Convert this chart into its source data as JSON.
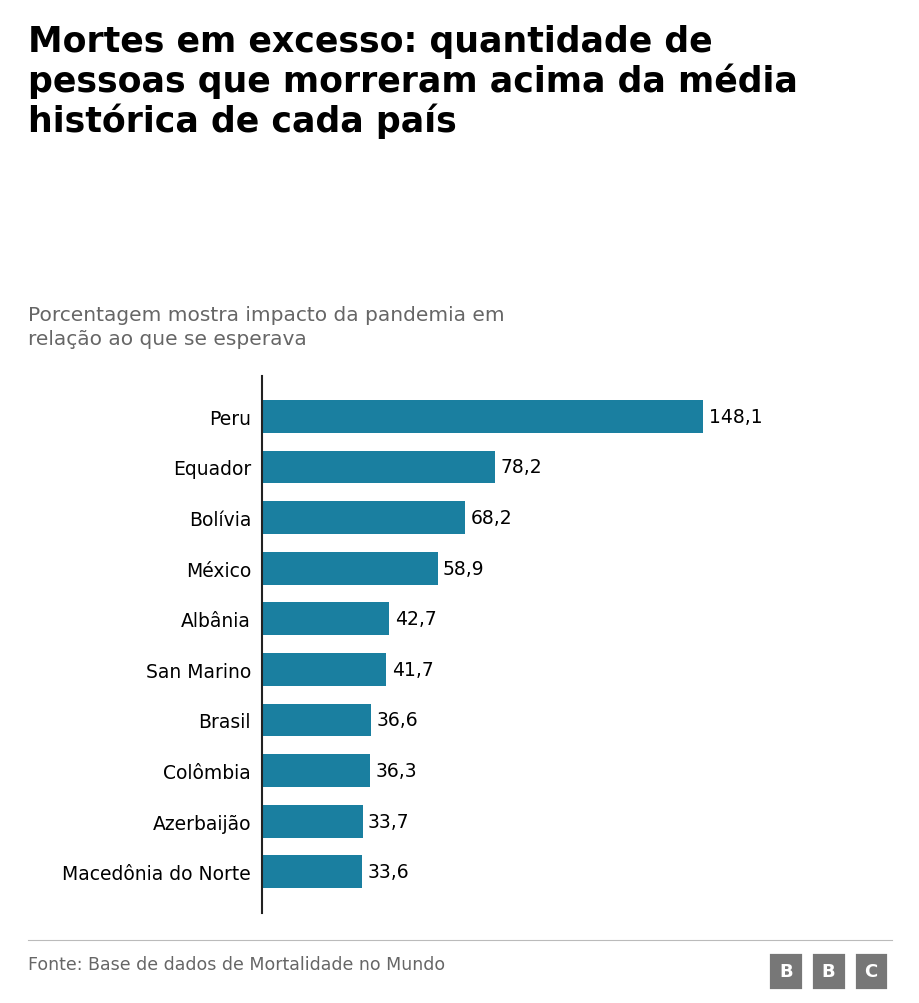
{
  "title": "Mortes em excesso: quantidade de\npessoas que morreram acima da média\nhistórica de cada país",
  "subtitle": "Porcentagem mostra impacto da pandemia em\nrelação ao que se esperava",
  "categories": [
    "Peru",
    "Equador",
    "Bolívia",
    "México",
    "Albânia",
    "San Marino",
    "Brasil",
    "Colômbia",
    "Azerbaijão",
    "Macedônia do Norte"
  ],
  "values": [
    148.1,
    78.2,
    68.2,
    58.9,
    42.7,
    41.7,
    36.6,
    36.3,
    33.7,
    33.6
  ],
  "bar_color": "#1a7fa0",
  "label_color": "#000000",
  "title_color": "#000000",
  "subtitle_color": "#666666",
  "bg_color": "#ffffff",
  "footer_text": "Fonte: Base de dados de Mortalidade no Mundo",
  "footer_color": "#666666",
  "title_fontsize": 25,
  "subtitle_fontsize": 14.5,
  "bar_label_fontsize": 13.5,
  "ytick_fontsize": 13.5,
  "footer_fontsize": 12.5
}
